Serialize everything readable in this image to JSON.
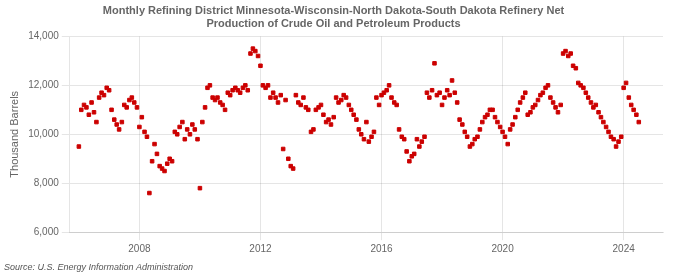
{
  "chart_data": {
    "type": "scatter",
    "title": "Monthly Refining District Minnesota-Wisconsin-North Dakota-South Dakota Refinery Net\nProduction of Crude Oil and Petroleum Products",
    "ylabel": "Thousand Barrels",
    "annotations": [
      "Source: U.S. Energy Information Administration"
    ],
    "color": "#cc0000",
    "marker": "square",
    "grid": true,
    "xlim": [
      2005.7,
      2025.3
    ],
    "xticks": [
      2008,
      2012,
      2016,
      2020,
      2024
    ],
    "ylim": [
      6000,
      14000
    ],
    "yticks": [
      {
        "value": 6000,
        "label": "6,000"
      },
      {
        "value": 8000,
        "label": "8,000"
      },
      {
        "value": 10000,
        "label": "10,000"
      },
      {
        "value": 12000,
        "label": "12,000"
      },
      {
        "value": 14000,
        "label": "14,000"
      }
    ],
    "x": [
      2006.0,
      2006.08,
      2006.17,
      2006.25,
      2006.33,
      2006.42,
      2006.5,
      2006.58,
      2006.67,
      2006.75,
      2006.83,
      2006.92,
      2007.0,
      2007.08,
      2007.17,
      2007.25,
      2007.33,
      2007.42,
      2007.5,
      2007.58,
      2007.67,
      2007.75,
      2007.83,
      2007.92,
      2008.0,
      2008.08,
      2008.17,
      2008.25,
      2008.33,
      2008.42,
      2008.5,
      2008.58,
      2008.67,
      2008.75,
      2008.83,
      2008.92,
      2009.0,
      2009.08,
      2009.17,
      2009.25,
      2009.33,
      2009.42,
      2009.5,
      2009.58,
      2009.67,
      2009.75,
      2009.83,
      2009.92,
      2010.0,
      2010.08,
      2010.17,
      2010.25,
      2010.33,
      2010.42,
      2010.5,
      2010.58,
      2010.67,
      2010.75,
      2010.83,
      2010.92,
      2011.0,
      2011.08,
      2011.17,
      2011.25,
      2011.33,
      2011.42,
      2011.5,
      2011.58,
      2011.67,
      2011.75,
      2011.83,
      2011.92,
      2012.0,
      2012.08,
      2012.17,
      2012.25,
      2012.33,
      2012.42,
      2012.5,
      2012.58,
      2012.67,
      2012.75,
      2012.83,
      2012.92,
      2013.0,
      2013.08,
      2013.17,
      2013.25,
      2013.33,
      2013.42,
      2013.5,
      2013.58,
      2013.67,
      2013.75,
      2013.83,
      2013.92,
      2014.0,
      2014.08,
      2014.17,
      2014.25,
      2014.33,
      2014.42,
      2014.5,
      2014.58,
      2014.67,
      2014.75,
      2014.83,
      2014.92,
      2015.0,
      2015.08,
      2015.17,
      2015.25,
      2015.33,
      2015.42,
      2015.5,
      2015.58,
      2015.67,
      2015.75,
      2015.83,
      2015.92,
      2016.0,
      2016.08,
      2016.17,
      2016.25,
      2016.33,
      2016.42,
      2016.5,
      2016.58,
      2016.67,
      2016.75,
      2016.83,
      2016.92,
      2017.0,
      2017.08,
      2017.17,
      2017.25,
      2017.33,
      2017.42,
      2017.5,
      2017.58,
      2017.67,
      2017.75,
      2017.83,
      2017.92,
      2018.0,
      2018.08,
      2018.17,
      2018.25,
      2018.33,
      2018.42,
      2018.5,
      2018.58,
      2018.67,
      2018.75,
      2018.83,
      2018.92,
      2019.0,
      2019.08,
      2019.17,
      2019.25,
      2019.33,
      2019.42,
      2019.5,
      2019.58,
      2019.67,
      2019.75,
      2019.83,
      2019.92,
      2020.0,
      2020.08,
      2020.17,
      2020.25,
      2020.33,
      2020.42,
      2020.5,
      2020.58,
      2020.67,
      2020.75,
      2020.83,
      2020.92,
      2021.0,
      2021.08,
      2021.17,
      2021.25,
      2021.33,
      2021.42,
      2021.5,
      2021.58,
      2021.67,
      2021.75,
      2021.83,
      2021.92,
      2022.0,
      2022.08,
      2022.17,
      2022.25,
      2022.33,
      2022.42,
      2022.5,
      2022.58,
      2022.67,
      2022.75,
      2022.83,
      2022.92,
      2023.0,
      2023.08,
      2023.17,
      2023.25,
      2023.33,
      2023.42,
      2023.5,
      2023.58,
      2023.67,
      2023.75,
      2023.83,
      2023.92,
      2024.0,
      2024.08,
      2024.17,
      2024.25,
      2024.33,
      2024.42,
      2024.5
    ],
    "values": [
      9500,
      11000,
      11200,
      11100,
      10800,
      11300,
      10900,
      10500,
      11500,
      11700,
      11600,
      11900,
      11800,
      11000,
      10600,
      10400,
      10200,
      10500,
      11200,
      11100,
      11400,
      11500,
      11300,
      11100,
      10300,
      10700,
      10100,
      9900,
      7600,
      8900,
      9600,
      9200,
      8700,
      8600,
      8500,
      8800,
      9000,
      8900,
      10100,
      10000,
      10300,
      10500,
      9800,
      10200,
      10000,
      10400,
      10200,
      9800,
      7800,
      10500,
      11100,
      11900,
      12000,
      11500,
      11400,
      11500,
      11300,
      11200,
      11000,
      11700,
      11600,
      11800,
      11900,
      11800,
      11700,
      11900,
      12000,
      11800,
      13300,
      13500,
      13400,
      13200,
      12800,
      12000,
      11900,
      12000,
      11500,
      11700,
      11500,
      11300,
      11600,
      9400,
      11400,
      9000,
      8700,
      8600,
      11600,
      11300,
      11200,
      11500,
      11100,
      11000,
      10100,
      10200,
      11000,
      11100,
      11200,
      10800,
      10500,
      10600,
      10400,
      10700,
      11500,
      11300,
      11400,
      11600,
      11500,
      11200,
      11000,
      10800,
      10600,
      10200,
      10000,
      9800,
      10500,
      9700,
      9900,
      10100,
      11500,
      11200,
      11600,
      11700,
      11800,
      12000,
      11500,
      11300,
      11200,
      10200,
      9900,
      9800,
      9300,
      8900,
      9100,
      9200,
      9800,
      9500,
      9700,
      9900,
      11700,
      11500,
      11800,
      12900,
      11600,
      11700,
      11200,
      11500,
      11800,
      11600,
      12200,
      11700,
      11300,
      10600,
      10400,
      10100,
      9900,
      9500,
      9600,
      9800,
      9900,
      10200,
      10500,
      10700,
      10800,
      11000,
      11000,
      10700,
      10500,
      10300,
      10100,
      9900,
      9600,
      10200,
      10400,
      10700,
      11000,
      11300,
      11500,
      11700,
      10800,
      10900,
      11100,
      11200,
      11400,
      11600,
      11700,
      11900,
      12000,
      11500,
      11300,
      11100,
      10900,
      11200,
      13300,
      13400,
      13200,
      13300,
      12800,
      12700,
      12100,
      12000,
      11900,
      11700,
      11500,
      11300,
      11100,
      11200,
      10900,
      10700,
      10500,
      10300,
      10100,
      9900,
      9800,
      9500,
      9700,
      9900,
      11900,
      12100,
      11500,
      11200,
      11000,
      10800,
      10500
    ]
  }
}
